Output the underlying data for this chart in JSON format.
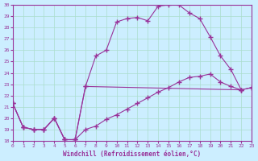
{
  "xlabel": "Windchill (Refroidissement éolien,°C)",
  "bg_color": "#cceeff",
  "grid_color": "#aaddcc",
  "line_color": "#993399",
  "xlim": [
    0,
    23
  ],
  "ylim": [
    18,
    30
  ],
  "xticks": [
    0,
    1,
    2,
    3,
    4,
    5,
    6,
    7,
    8,
    9,
    10,
    11,
    12,
    13,
    14,
    15,
    16,
    17,
    18,
    19,
    20,
    21,
    22,
    23
  ],
  "yticks": [
    18,
    19,
    20,
    21,
    22,
    23,
    24,
    25,
    26,
    27,
    28,
    29,
    30
  ],
  "line1_x": [
    0,
    1,
    2,
    3,
    4,
    5,
    6,
    7,
    8,
    9,
    10,
    11,
    12,
    13,
    14,
    15,
    16,
    17,
    18,
    19,
    20,
    21,
    22,
    23
  ],
  "line1_y": [
    21.3,
    19.2,
    19.0,
    19.0,
    20.0,
    18.1,
    18.1,
    19.0,
    19.3,
    19.9,
    20.3,
    20.8,
    21.3,
    21.8,
    22.3,
    22.7,
    23.2,
    23.6,
    23.7,
    23.9,
    23.2,
    22.8,
    22.5,
    22.7
  ],
  "line2_x": [
    0,
    1,
    2,
    3,
    4,
    5,
    6,
    7,
    8,
    9,
    10,
    11,
    12,
    13,
    14,
    15,
    16,
    17,
    18,
    19,
    20,
    21,
    22
  ],
  "line2_y": [
    21.3,
    19.2,
    19.0,
    19.0,
    20.0,
    18.1,
    18.1,
    22.8,
    25.5,
    26.0,
    28.5,
    28.8,
    28.9,
    28.6,
    29.9,
    30.0,
    30.0,
    29.3,
    28.8,
    27.2,
    25.5,
    24.3,
    22.5
  ],
  "line3_x": [
    0,
    1,
    2,
    3,
    4,
    5,
    6,
    7,
    22,
    23
  ],
  "line3_y": [
    21.3,
    19.2,
    19.0,
    19.0,
    20.0,
    18.1,
    18.1,
    22.8,
    22.5,
    22.7
  ]
}
